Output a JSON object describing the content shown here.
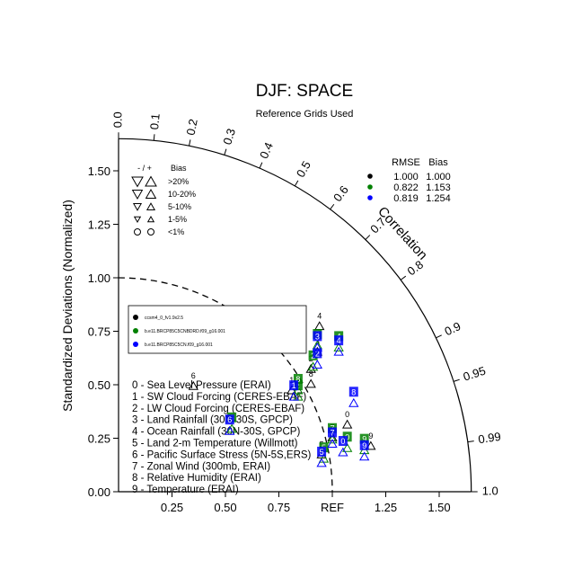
{
  "chart_data": {
    "type": "scatter",
    "subtype": "taylor-diagram",
    "title": "DJF: SPACE",
    "subtitle": "Reference Grids Used",
    "ylabel": "Standardized Deviations (Normalized)",
    "arc_label": "Correlation",
    "ref_label": "REF",
    "std_range": [
      0,
      1.65
    ],
    "ref_std": 1.0,
    "y_ticks": [
      "0.00",
      "0.25",
      "0.50",
      "0.75",
      "1.00",
      "1.25",
      "1.50"
    ],
    "x_ticks": [
      "0.25",
      "0.50",
      "0.75",
      "REF",
      "1.25",
      "1.50"
    ],
    "corr_ticks": [
      "0.0",
      "0.1",
      "0.2",
      "0.3",
      "0.4",
      "0.5",
      "0.6",
      "0.7",
      "0.8",
      "0.9",
      "0.95",
      "0.99",
      "1.0"
    ],
    "bias_legend": {
      "header_sign": "- / +",
      "header_bias": "Bias",
      "rows": [
        {
          "label": ">20%",
          "symbol": "triangle-large"
        },
        {
          "label": "10-20%",
          "symbol": "triangle-medium"
        },
        {
          "label": "5-10%",
          "symbol": "triangle-small"
        },
        {
          "label": "1-5%",
          "symbol": "triangle-tiny"
        },
        {
          "label": "<1%",
          "symbol": "circle"
        }
      ]
    },
    "stats_table": {
      "headers": [
        "RMSE",
        "Bias"
      ],
      "rows": [
        {
          "color": "#000000",
          "rmse": "1.000",
          "bias": "1.000"
        },
        {
          "color": "#008000",
          "rmse": "0.822",
          "bias": "1.153"
        },
        {
          "color": "#0000ff",
          "rmse": "0.819",
          "bias": "1.254"
        }
      ]
    },
    "case_legend": [
      {
        "color": "#000000",
        "label": "ccsm4_0_fv1.9x2.5"
      },
      {
        "color": "#008000",
        "label": "b.e11.BRCP85C5CNBDRD.f09_g16.001"
      },
      {
        "color": "#0000ff",
        "label": "b.e11.BRCP85C5CN.f09_g16.001"
      }
    ],
    "variables": [
      "0 - Sea Level Pressure (ERAI)",
      "1 - SW Cloud Forcing (CERES-EBAF)",
      "2 - LW Cloud Forcing (CERES-EBAF)",
      "3 - Land Rainfall (30N-30S, GPCP)",
      "4 - Ocean Rainfall (30N-30S, GPCP)",
      "5 - Land 2-m Temperature (Willmott)",
      "6 - Pacific Surface Stress (5N-5S,ERS)",
      "7 - Zonal Wind (300mb, ERAI)",
      "8 - Relative Humidity (ERAI)",
      "9 - Temperature (ERAI)"
    ],
    "series": [
      {
        "name": "ccsm4_0_fv1.9x2.5",
        "color": "#000000",
        "points": [
          {
            "id": "0",
            "x": 1.07,
            "y": 0.34
          },
          {
            "id": "1",
            "x": 0.81,
            "y": 0.5
          },
          {
            "id": "2",
            "x": 0.9,
            "y": 0.6
          },
          {
            "id": "3",
            "x": 0.93,
            "y": 0.68
          },
          {
            "id": "4",
            "x": 0.94,
            "y": 0.8
          },
          {
            "id": "5",
            "x": 0.95,
            "y": 0.2
          },
          {
            "id": "6",
            "x": 0.35,
            "y": 0.52
          },
          {
            "id": "7",
            "x": 1.0,
            "y": 0.28
          },
          {
            "id": "8",
            "x": 0.9,
            "y": 0.53
          },
          {
            "id": "9",
            "x": 1.18,
            "y": 0.24
          }
        ]
      },
      {
        "name": "b.e11.BRCP85C5CNBDRD.f09_g16.001",
        "color": "#008000",
        "points": [
          {
            "id": "0",
            "x": 1.07,
            "y": 0.23
          },
          {
            "id": "1",
            "x": 0.84,
            "y": 0.47
          },
          {
            "id": "2",
            "x": 0.91,
            "y": 0.61
          },
          {
            "id": "3",
            "x": 0.93,
            "y": 0.71
          },
          {
            "id": "4",
            "x": 1.03,
            "y": 0.7
          },
          {
            "id": "5",
            "x": 0.96,
            "y": 0.18
          },
          {
            "id": "6",
            "x": 0.53,
            "y": 0.32
          },
          {
            "id": "7",
            "x": 1.0,
            "y": 0.27
          },
          {
            "id": "8",
            "x": 0.84,
            "y": 0.5
          },
          {
            "id": "9",
            "x": 1.15,
            "y": 0.22
          }
        ]
      },
      {
        "name": "b.e11.BRCP85C5CN.f09_g16.001",
        "color": "#0000ff",
        "points": [
          {
            "id": "0",
            "x": 1.05,
            "y": 0.21
          },
          {
            "id": "1",
            "x": 0.82,
            "y": 0.47
          },
          {
            "id": "2",
            "x": 0.93,
            "y": 0.62
          },
          {
            "id": "3",
            "x": 0.93,
            "y": 0.7
          },
          {
            "id": "4",
            "x": 1.03,
            "y": 0.68
          },
          {
            "id": "5",
            "x": 0.95,
            "y": 0.16
          },
          {
            "id": "6",
            "x": 0.52,
            "y": 0.31
          },
          {
            "id": "7",
            "x": 1.0,
            "y": 0.25
          },
          {
            "id": "8",
            "x": 1.1,
            "y": 0.44
          },
          {
            "id": "9",
            "x": 1.15,
            "y": 0.19
          }
        ]
      }
    ]
  }
}
